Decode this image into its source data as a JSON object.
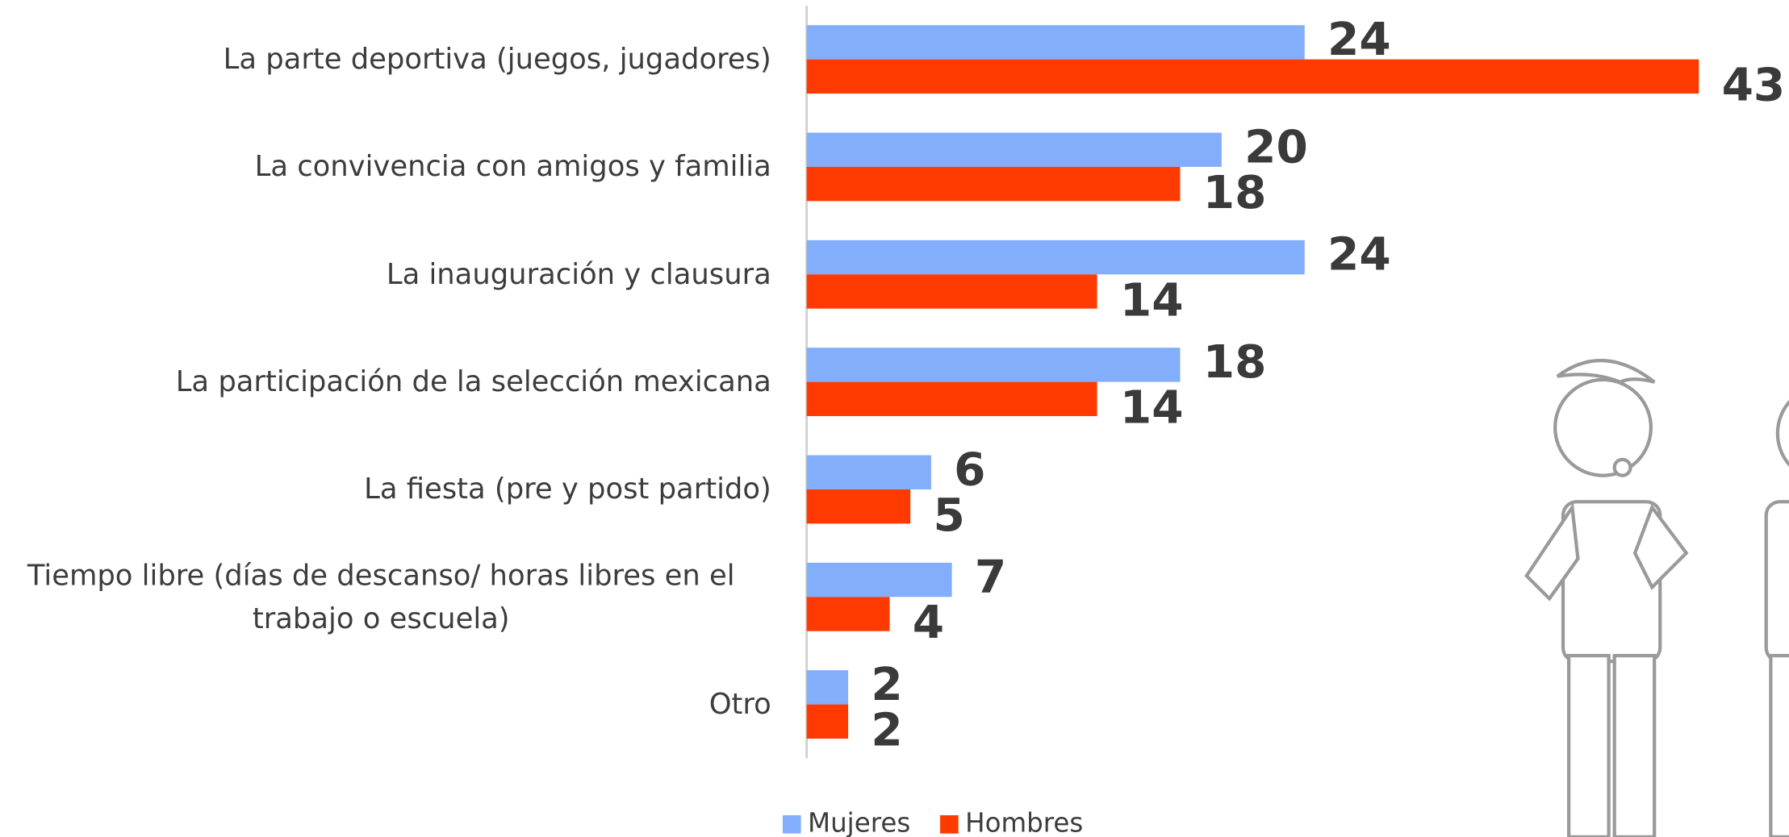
{
  "chart_data": {
    "type": "hbar",
    "categories": [
      "La parte deportiva (juegos, jugadores)",
      "La convivencia con amigos y familia",
      "La inauguración y clausura",
      "La participación de la selección mexicana",
      "La fiesta (pre y post partido)",
      "Tiempo libre (días de descanso/ horas libres en el trabajo o escuela)",
      "Otro"
    ],
    "series": [
      {
        "name": "Mujeres",
        "color": "#82aefc",
        "values": [
          24,
          20,
          24,
          18,
          6,
          7,
          2
        ]
      },
      {
        "name": "Hombres",
        "color": "#ff3a00",
        "values": [
          43,
          18,
          14,
          14,
          5,
          4,
          2
        ]
      }
    ],
    "legend": "bottom"
  }
}
